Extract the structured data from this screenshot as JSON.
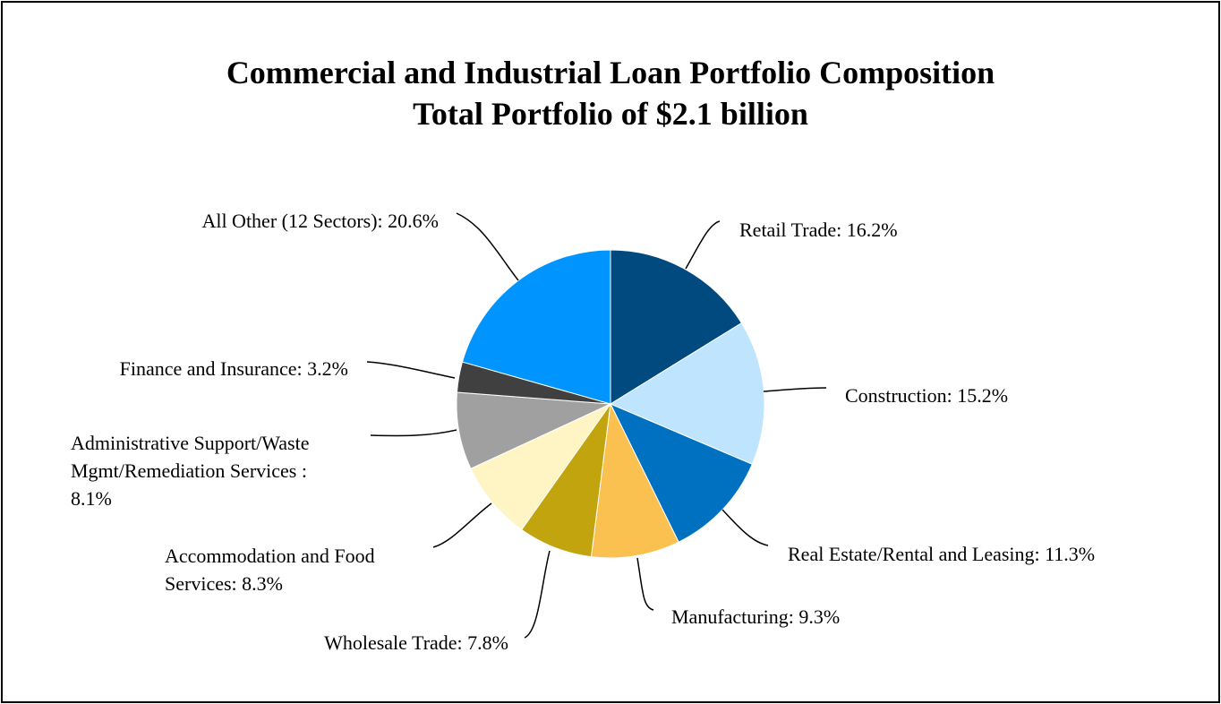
{
  "chart_data": {
    "type": "pie",
    "title": "Commercial and Industrial Loan Portfolio Composition",
    "subtitle": "Total Portfolio of $2.1 billion",
    "slices": [
      {
        "label": "Retail Trade",
        "value": 16.2,
        "color": "#004a7f",
        "label_text": [
          "Retail Trade: 16.2%"
        ]
      },
      {
        "label": "Construction",
        "value": 15.2,
        "color": "#bfe4fd",
        "label_text": [
          "Construction: 15.2%"
        ]
      },
      {
        "label": "Real Estate/Rental and Leasing",
        "value": 11.3,
        "color": "#0070c0",
        "label_text": [
          "Real Estate/Rental and Leasing: 11.3%"
        ]
      },
      {
        "label": "Manufacturing",
        "value": 9.3,
        "color": "#fac150",
        "label_text": [
          "Manufacturing: 9.3%"
        ]
      },
      {
        "label": "Wholesale Trade",
        "value": 7.8,
        "color": "#c2a50e",
        "label_text": [
          "Wholesale Trade: 7.8%"
        ]
      },
      {
        "label": "Accommodation and Food Services",
        "value": 8.3,
        "color": "#fff4c4",
        "label_text": [
          "Accommodation and Food",
          "Services: 8.3%"
        ]
      },
      {
        "label": "Administrative Support/Waste Mgmt/Remediation Services",
        "value": 8.1,
        "color": "#a0a0a0",
        "label_text": [
          "Administrative Support/Waste",
          "Mgmt/Remediation Services :",
          "8.1%"
        ]
      },
      {
        "label": "Finance and Insurance",
        "value": 3.2,
        "color": "#404040",
        "label_text": [
          "Finance and Insurance: 3.2%"
        ]
      },
      {
        "label": "All Other (12 Sectors)",
        "value": 20.6,
        "color": "#0094ff",
        "label_text": [
          "All Other (12 Sectors): 20.6%"
        ]
      }
    ]
  }
}
